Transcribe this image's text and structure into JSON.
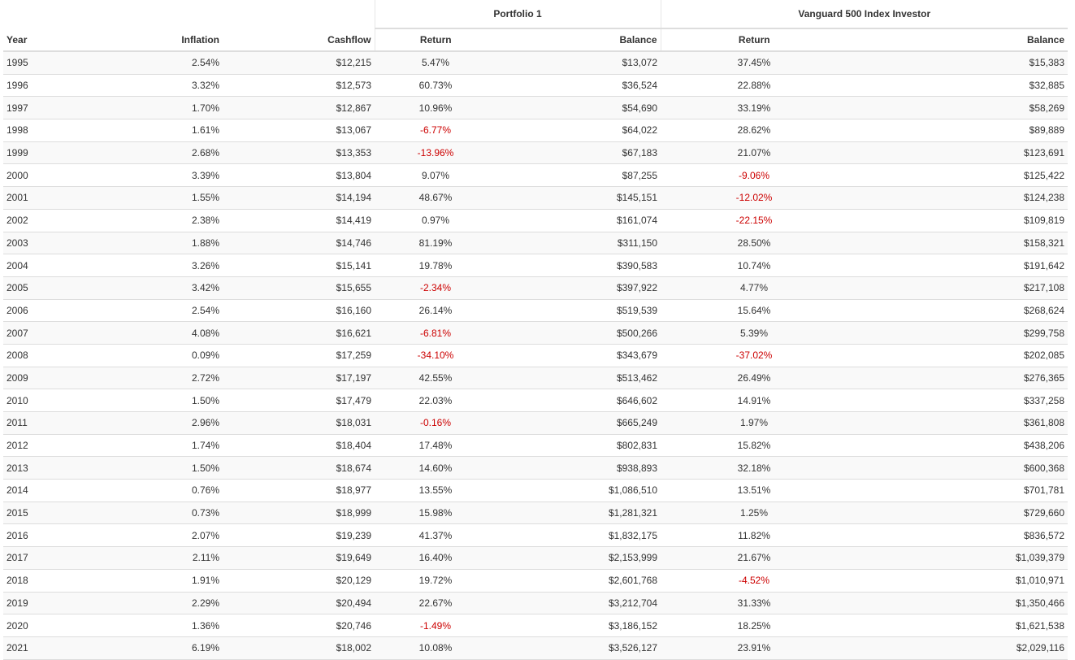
{
  "table": {
    "group_headers": {
      "portfolio": "Portfolio 1",
      "benchmark": "Vanguard 500 Index Investor"
    },
    "columns": {
      "year": "Year",
      "inflation": "Inflation",
      "cashflow": "Cashflow",
      "p_return": "Return",
      "p_balance": "Balance",
      "b_return": "Return",
      "b_balance": "Balance"
    },
    "rows": [
      [
        "1995",
        "2.54%",
        "$12,215",
        "5.47%",
        "$13,072",
        "37.45%",
        "$15,383"
      ],
      [
        "1996",
        "3.32%",
        "$12,573",
        "60.73%",
        "$36,524",
        "22.88%",
        "$32,885"
      ],
      [
        "1997",
        "1.70%",
        "$12,867",
        "10.96%",
        "$54,690",
        "33.19%",
        "$58,269"
      ],
      [
        "1998",
        "1.61%",
        "$13,067",
        "-6.77%",
        "$64,022",
        "28.62%",
        "$89,889"
      ],
      [
        "1999",
        "2.68%",
        "$13,353",
        "-13.96%",
        "$67,183",
        "21.07%",
        "$123,691"
      ],
      [
        "2000",
        "3.39%",
        "$13,804",
        "9.07%",
        "$87,255",
        "-9.06%",
        "$125,422"
      ],
      [
        "2001",
        "1.55%",
        "$14,194",
        "48.67%",
        "$145,151",
        "-12.02%",
        "$124,238"
      ],
      [
        "2002",
        "2.38%",
        "$14,419",
        "0.97%",
        "$161,074",
        "-22.15%",
        "$109,819"
      ],
      [
        "2003",
        "1.88%",
        "$14,746",
        "81.19%",
        "$311,150",
        "28.50%",
        "$158,321"
      ],
      [
        "2004",
        "3.26%",
        "$15,141",
        "19.78%",
        "$390,583",
        "10.74%",
        "$191,642"
      ],
      [
        "2005",
        "3.42%",
        "$15,655",
        "-2.34%",
        "$397,922",
        "4.77%",
        "$217,108"
      ],
      [
        "2006",
        "2.54%",
        "$16,160",
        "26.14%",
        "$519,539",
        "15.64%",
        "$268,624"
      ],
      [
        "2007",
        "4.08%",
        "$16,621",
        "-6.81%",
        "$500,266",
        "5.39%",
        "$299,758"
      ],
      [
        "2008",
        "0.09%",
        "$17,259",
        "-34.10%",
        "$343,679",
        "-37.02%",
        "$202,085"
      ],
      [
        "2009",
        "2.72%",
        "$17,197",
        "42.55%",
        "$513,462",
        "26.49%",
        "$276,365"
      ],
      [
        "2010",
        "1.50%",
        "$17,479",
        "22.03%",
        "$646,602",
        "14.91%",
        "$337,258"
      ],
      [
        "2011",
        "2.96%",
        "$18,031",
        "-0.16%",
        "$665,249",
        "1.97%",
        "$361,808"
      ],
      [
        "2012",
        "1.74%",
        "$18,404",
        "17.48%",
        "$802,831",
        "15.82%",
        "$438,206"
      ],
      [
        "2013",
        "1.50%",
        "$18,674",
        "14.60%",
        "$938,893",
        "32.18%",
        "$600,368"
      ],
      [
        "2014",
        "0.76%",
        "$18,977",
        "13.55%",
        "$1,086,510",
        "13.51%",
        "$701,781"
      ],
      [
        "2015",
        "0.73%",
        "$18,999",
        "15.98%",
        "$1,281,321",
        "1.25%",
        "$729,660"
      ],
      [
        "2016",
        "2.07%",
        "$19,239",
        "41.37%",
        "$1,832,175",
        "11.82%",
        "$836,572"
      ],
      [
        "2017",
        "2.11%",
        "$19,649",
        "16.40%",
        "$2,153,999",
        "21.67%",
        "$1,039,379"
      ],
      [
        "2018",
        "1.91%",
        "$20,129",
        "19.72%",
        "$2,601,768",
        "-4.52%",
        "$1,010,971"
      ],
      [
        "2019",
        "2.29%",
        "$20,494",
        "22.67%",
        "$3,212,704",
        "31.33%",
        "$1,350,466"
      ],
      [
        "2020",
        "1.36%",
        "$20,746",
        "-1.49%",
        "$3,186,152",
        "18.25%",
        "$1,621,538"
      ],
      [
        "2021",
        "6.19%",
        "$18,002",
        "10.08%",
        "$3,526,127",
        "23.91%",
        "$2,029,116"
      ]
    ]
  },
  "colors": {
    "negative": "#cc0000",
    "text": "#333333",
    "stripe": "#f9f9f9",
    "rule": "#dddddd"
  }
}
